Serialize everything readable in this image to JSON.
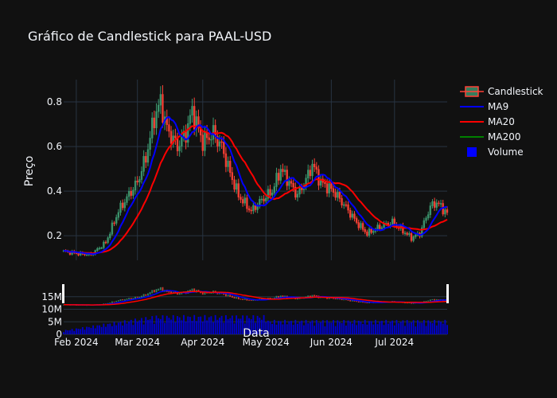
{
  "chart_data": {
    "type": "candlestick",
    "title": "Gráfico de Candlestick para PAAL-USD",
    "xlabel": "Data",
    "ylabel": "Preço",
    "x_start": "2024-01-26",
    "x_end": "2024-07-26",
    "ylim": [
      0.09,
      0.9
    ],
    "yticks": [
      0.2,
      0.4,
      0.6,
      0.8
    ],
    "xticks": [
      {
        "date": "2024-02-01",
        "label": "Feb 2024"
      },
      {
        "date": "2024-03-01",
        "label": "Mar 2024"
      },
      {
        "date": "2024-04-01",
        "label": "Apr 2024"
      },
      {
        "date": "2024-05-01",
        "label": "May 2024"
      },
      {
        "date": "2024-06-01",
        "label": "Jun 2024"
      },
      {
        "date": "2024-07-01",
        "label": "Jul 2024"
      }
    ],
    "volume_ticks": [
      {
        "value": 0,
        "label": "0"
      },
      {
        "value": 5000000,
        "label": "5M"
      },
      {
        "value": 10000000,
        "label": "10M"
      },
      {
        "value": 15000000,
        "label": "15M"
      }
    ],
    "volume_max": 20000000,
    "legend": [
      {
        "name": "Candlestick",
        "kind": "candle"
      },
      {
        "name": "MA9",
        "kind": "line",
        "color": "#0000ff"
      },
      {
        "name": "MA20",
        "kind": "line",
        "color": "#ff0000"
      },
      {
        "name": "MA200",
        "kind": "line",
        "color": "#008000"
      },
      {
        "name": "Volume",
        "kind": "square",
        "color": "#0000ff"
      }
    ],
    "colors": {
      "increasing": "#3d9970",
      "decreasing": "#ff4136",
      "ma9": "#0000ff",
      "ma20": "#ff0000",
      "volume": "#0000cc"
    },
    "close_keypoints": [
      {
        "date": "2024-01-26",
        "close": 0.13
      },
      {
        "date": "2024-02-02",
        "close": 0.12
      },
      {
        "date": "2024-02-08",
        "close": 0.115
      },
      {
        "date": "2024-02-15",
        "close": 0.17
      },
      {
        "date": "2024-02-21",
        "close": 0.31
      },
      {
        "date": "2024-02-25",
        "close": 0.37
      },
      {
        "date": "2024-03-01",
        "close": 0.44
      },
      {
        "date": "2024-03-05",
        "close": 0.55
      },
      {
        "date": "2024-03-09",
        "close": 0.73
      },
      {
        "date": "2024-03-12",
        "close": 0.8
      },
      {
        "date": "2024-03-15",
        "close": 0.68
      },
      {
        "date": "2024-03-20",
        "close": 0.6
      },
      {
        "date": "2024-03-24",
        "close": 0.66
      },
      {
        "date": "2024-03-27",
        "close": 0.76
      },
      {
        "date": "2024-04-01",
        "close": 0.62
      },
      {
        "date": "2024-04-06",
        "close": 0.66
      },
      {
        "date": "2024-04-10",
        "close": 0.6
      },
      {
        "date": "2024-04-14",
        "close": 0.48
      },
      {
        "date": "2024-04-18",
        "close": 0.38
      },
      {
        "date": "2024-04-24",
        "close": 0.31
      },
      {
        "date": "2024-04-29",
        "close": 0.36
      },
      {
        "date": "2024-05-04",
        "close": 0.4
      },
      {
        "date": "2024-05-08",
        "close": 0.5
      },
      {
        "date": "2024-05-12",
        "close": 0.44
      },
      {
        "date": "2024-05-16",
        "close": 0.38
      },
      {
        "date": "2024-05-20",
        "close": 0.45
      },
      {
        "date": "2024-05-23",
        "close": 0.52
      },
      {
        "date": "2024-05-27",
        "close": 0.44
      },
      {
        "date": "2024-06-02",
        "close": 0.4
      },
      {
        "date": "2024-06-07",
        "close": 0.34
      },
      {
        "date": "2024-06-13",
        "close": 0.26
      },
      {
        "date": "2024-06-18",
        "close": 0.21
      },
      {
        "date": "2024-06-24",
        "close": 0.24
      },
      {
        "date": "2024-06-30",
        "close": 0.26
      },
      {
        "date": "2024-07-04",
        "close": 0.23
      },
      {
        "date": "2024-07-09",
        "close": 0.19
      },
      {
        "date": "2024-07-13",
        "close": 0.21
      },
      {
        "date": "2024-07-18",
        "close": 0.33
      },
      {
        "date": "2024-07-21",
        "close": 0.35
      },
      {
        "date": "2024-07-26",
        "close": 0.3
      }
    ]
  }
}
